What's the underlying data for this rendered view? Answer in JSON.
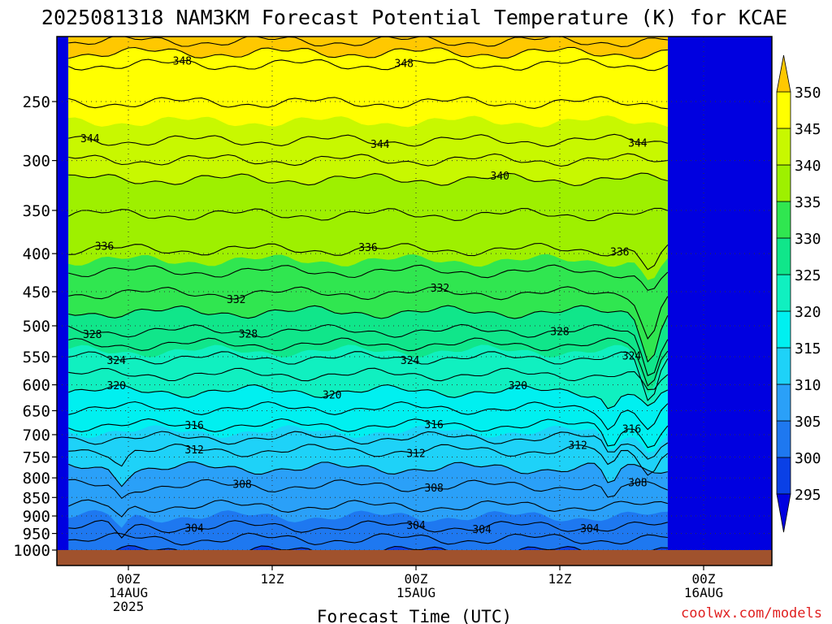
{
  "chart_data": {
    "type": "heatmap",
    "title": "2025081318 NAM3KM Forecast Potential Temperature (K) for KCAE",
    "xlabel": "Forecast Time (UTC)",
    "ylabel": "",
    "credit": "coolwx.com/models",
    "x_range_hours": [
      -5,
      45
    ],
    "x_ticks": [
      {
        "hour": 0,
        "lines": [
          "00Z",
          "14AUG",
          "2025"
        ]
      },
      {
        "hour": 12,
        "lines": [
          "12Z"
        ]
      },
      {
        "hour": 24,
        "lines": [
          "00Z",
          "15AUG"
        ]
      },
      {
        "hour": 36,
        "lines": [
          "12Z"
        ]
      },
      {
        "hour": 48,
        "lines": [
          "00Z",
          "16AUG"
        ]
      }
    ],
    "y_scale": "log-pressure",
    "y_range": [
      1000,
      200
    ],
    "y_ticks": [
      250,
      300,
      350,
      400,
      450,
      500,
      550,
      600,
      650,
      700,
      750,
      800,
      850,
      900,
      950,
      1000
    ],
    "grid": true,
    "colorbar": {
      "levels": [
        295,
        300,
        305,
        310,
        315,
        320,
        325,
        330,
        335,
        340,
        345,
        350
      ],
      "colors": [
        "#0000e0",
        "#0a40e6",
        "#1e78f0",
        "#2aa0f8",
        "#1ed2f8",
        "#00f0f0",
        "#10f0c0",
        "#10e68a",
        "#30e650",
        "#9ef000",
        "#c8f800",
        "#ffff00",
        "#ffc800"
      ],
      "extend": "both"
    },
    "contour_levels_labeled": [
      {
        "value": "348",
        "hours": [
          4.5,
          23.0
        ]
      },
      {
        "value": "344",
        "hours": [
          -3.2,
          21.0,
          42.5
        ]
      },
      {
        "value": "340",
        "hours": [
          31.0
        ]
      },
      {
        "value": "336",
        "hours": [
          -2.0,
          20.0,
          41.0
        ]
      },
      {
        "value": "332",
        "hours": [
          9.0,
          26.0
        ]
      },
      {
        "value": "328",
        "hours": [
          -3.0,
          10.0,
          36.0
        ]
      },
      {
        "value": "324",
        "hours": [
          -1.0,
          23.5,
          42.0
        ]
      },
      {
        "value": "320",
        "hours": [
          -1.0,
          17.0,
          32.5
        ]
      },
      {
        "value": "316",
        "hours": [
          5.5,
          25.5,
          42.0
        ]
      },
      {
        "value": "312",
        "hours": [
          5.5,
          24.0,
          37.5
        ]
      },
      {
        "value": "308",
        "hours": [
          9.5,
          25.5,
          42.5
        ]
      },
      {
        "value": "304",
        "hours": [
          5.5,
          24.0,
          29.5,
          38.5
        ]
      }
    ],
    "isentrope_pressures": {
      "304": 930,
      "308": 820,
      "312": 735,
      "316": 680,
      "320": 612,
      "324": 552,
      "328": 508,
      "332": 452,
      "336": 395,
      "340": 318,
      "344": 282,
      "348": 223
    },
    "ground_level": 1000
  }
}
